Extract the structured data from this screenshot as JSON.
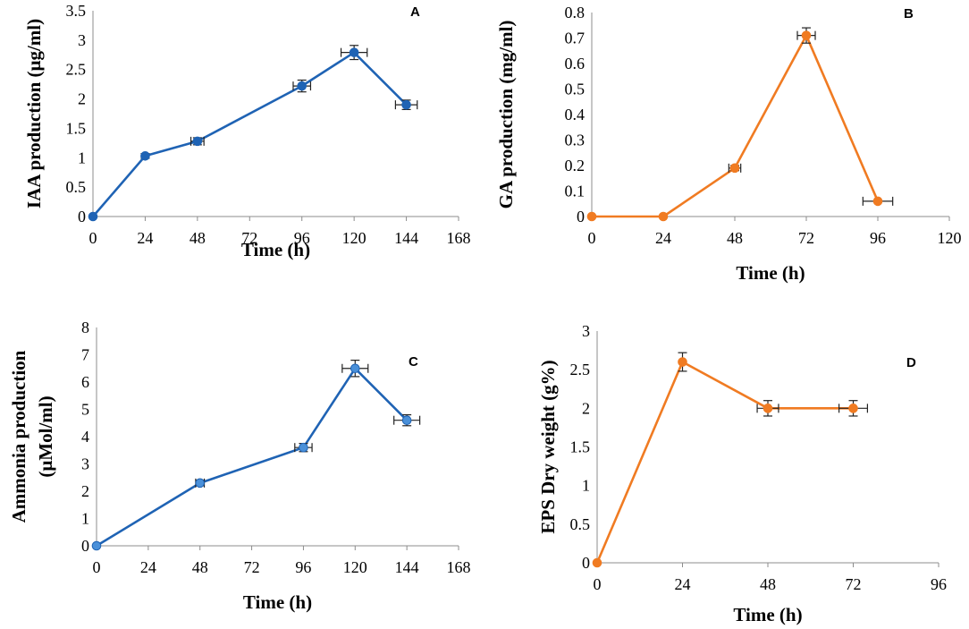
{
  "chart_data": [
    {
      "panel": "A",
      "type": "line",
      "title": "",
      "xlabel": "Time (h)",
      "ylabel": "IAA production (μg/ml)",
      "ylabel_lines": [
        "IAA production (μg/ml)"
      ],
      "xticks": [
        0,
        24,
        48,
        72,
        96,
        120,
        144,
        168
      ],
      "xtick_labels": [
        "0",
        "24",
        "48",
        "72",
        "96",
        "120",
        "144",
        "168"
      ],
      "yticks": [
        0,
        0.5,
        1,
        1.5,
        2,
        2.5,
        3,
        3.5
      ],
      "ytick_labels": [
        "0",
        "0.5",
        "1",
        "1.5",
        "2",
        "2.5",
        "3",
        "3.5"
      ],
      "xlim": [
        0,
        168
      ],
      "ylim": [
        0,
        3.5
      ],
      "color": "#1f63b4",
      "marker_fill": "#1f63b4",
      "series": [
        {
          "name": "IAA",
          "x": [
            0,
            24,
            48,
            96,
            120,
            144
          ],
          "y": [
            0,
            1.03,
            1.28,
            2.22,
            2.79,
            1.9
          ],
          "yerr": [
            0,
            0.04,
            0.06,
            0.1,
            0.12,
            0.08
          ],
          "xerr": [
            0,
            0,
            3,
            4,
            6,
            5
          ]
        }
      ],
      "grid": false
    },
    {
      "panel": "B",
      "type": "line",
      "title": "",
      "xlabel": "Time (h)",
      "ylabel": "GA production (mg/ml)",
      "ylabel_lines": [
        "GA production (mg/ml)"
      ],
      "xticks": [
        0,
        24,
        48,
        72,
        96,
        120
      ],
      "xtick_labels": [
        "0",
        "24",
        "48",
        "72",
        "96",
        "120"
      ],
      "yticks": [
        0,
        0.1,
        0.2,
        0.3,
        0.4,
        0.5,
        0.6,
        0.7,
        0.8
      ],
      "ytick_labels": [
        "0",
        "0.1",
        "0.2",
        "0.3",
        "0.4",
        "0.5",
        "0.6",
        "0.7",
        "0.8"
      ],
      "xlim": [
        0,
        120
      ],
      "ylim": [
        0,
        0.8
      ],
      "color": "#f07b22",
      "marker_fill": "#f07b22",
      "series": [
        {
          "name": "GA",
          "x": [
            0,
            24,
            48,
            72,
            96
          ],
          "y": [
            0,
            0,
            0.19,
            0.71,
            0.06
          ],
          "yerr": [
            0,
            0,
            0.01,
            0.03,
            0
          ],
          "xerr": [
            0,
            0,
            2,
            3,
            5
          ]
        }
      ],
      "grid": false
    },
    {
      "panel": "C",
      "type": "line",
      "title": "",
      "xlabel": "Time (h)",
      "ylabel": "Ammonia production (μMol/ml)",
      "ylabel_lines": [
        "Ammonia production",
        "(μMol/ml)"
      ],
      "xticks": [
        0,
        24,
        48,
        72,
        96,
        120,
        144,
        168
      ],
      "xtick_labels": [
        "0",
        "24",
        "48",
        "72",
        "96",
        "120",
        "144",
        "168"
      ],
      "yticks": [
        0,
        1,
        2,
        3,
        4,
        5,
        6,
        7,
        8
      ],
      "ytick_labels": [
        "0",
        "1",
        "2",
        "3",
        "4",
        "5",
        "6",
        "7",
        "8"
      ],
      "xlim": [
        0,
        168
      ],
      "ylim": [
        0,
        8
      ],
      "color": "#1f63b4",
      "marker_fill": "#4a90d9",
      "series": [
        {
          "name": "Ammonia",
          "x": [
            0,
            48,
            96,
            120,
            144
          ],
          "y": [
            0,
            2.3,
            3.6,
            6.5,
            4.6
          ],
          "yerr": [
            0,
            0.1,
            0.15,
            0.3,
            0.2
          ],
          "xerr": [
            0,
            2,
            4,
            6,
            6
          ]
        }
      ],
      "grid": false
    },
    {
      "panel": "D",
      "type": "line",
      "title": "",
      "xlabel": "Time (h)",
      "ylabel": "EPS Dry weight (g%)",
      "ylabel_lines": [
        "EPS Dry weight (g%)"
      ],
      "xticks": [
        0,
        24,
        48,
        72,
        96
      ],
      "xtick_labels": [
        "0",
        "24",
        "48",
        "72",
        "96"
      ],
      "yticks": [
        0,
        0.5,
        1,
        1.5,
        2,
        2.5,
        3
      ],
      "ytick_labels": [
        "0",
        "0.5",
        "1",
        "1.5",
        "2",
        "2.5",
        "3"
      ],
      "xlim": [
        0,
        96
      ],
      "ylim": [
        0,
        3
      ],
      "color": "#f07b22",
      "marker_fill": "#f07b22",
      "series": [
        {
          "name": "EPS",
          "x": [
            0,
            24,
            48,
            72
          ],
          "y": [
            0,
            2.6,
            2.0,
            2.0
          ],
          "yerr": [
            0,
            0.12,
            0.1,
            0.1
          ],
          "xerr": [
            0,
            0,
            3,
            4
          ]
        }
      ],
      "grid": false
    }
  ]
}
